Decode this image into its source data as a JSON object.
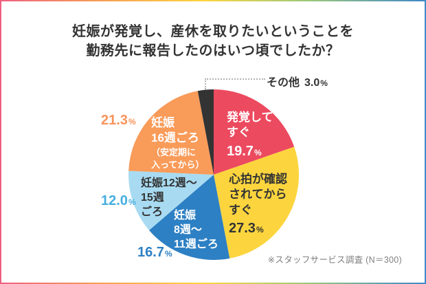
{
  "title": {
    "line1": "妊娠が発覚し、産休を取りたいということを",
    "line2": "勤務先に報告したのはいつ頃でしたか？"
  },
  "source_note": "※スタッフサービス調査 (N＝300)",
  "percent_sign": "%",
  "chart_data": {
    "type": "pie",
    "title": "妊娠が発覚し、産休を取りたいということを勤務先に報告したのはいつ頃でしたか？",
    "start_angle_deg": 0,
    "direction": "clockwise",
    "total": 100.0,
    "slices": [
      {
        "id": "hakkaku-sugu",
        "label": "発覚してすぐ",
        "label_lines": [
          "発覚して",
          "すぐ"
        ],
        "value": 19.7,
        "value_str": "19.7",
        "color": "#ec4a5f",
        "label_color": "#ffffff",
        "label_position": "inside"
      },
      {
        "id": "shinpaku-kakunin",
        "label": "心拍が確認されてからすぐ",
        "label_lines": [
          "心拍が確認",
          "されてから",
          "すぐ"
        ],
        "value": 27.3,
        "value_str": "27.3",
        "color": "#fcd53e",
        "label_color": "#333333",
        "label_position": "inside"
      },
      {
        "id": "ninshin-8-11shu",
        "label": "妊娠8週〜11週ごろ",
        "label_lines": [
          "妊娠",
          "8週〜",
          "11週ごろ"
        ],
        "value": 16.7,
        "value_str": "16.7",
        "color": "#2d80c4",
        "label_color": "#ffffff",
        "pct_color": "#2d80c4",
        "label_position": "inside-pct-outside"
      },
      {
        "id": "ninshin-12-15shu",
        "label": "妊娠12週〜15週ごろ",
        "label_lines": [
          "妊娠12週〜",
          "15週",
          "ごろ"
        ],
        "value": 12.0,
        "value_str": "12.0",
        "color": "#a8dbf2",
        "label_color": "#333333",
        "pct_color": "#45aedf",
        "label_position": "inside-pct-outside"
      },
      {
        "id": "ninshin-16shu",
        "label": "妊娠16週ごろ（安定期に入ってから）",
        "label_lines": [
          "妊娠",
          "16週ごろ"
        ],
        "label_sub_lines": [
          "（安定期に",
          "入ってから）"
        ],
        "value": 21.3,
        "value_str": "21.3",
        "color": "#f99b59",
        "label_color": "#ffffff",
        "pct_color": "#f8935a",
        "label_position": "inside-pct-outside"
      },
      {
        "id": "sonota",
        "label": "その他",
        "value": 3.0,
        "value_str": "3.0",
        "color": "#333333",
        "pct_color": "#333333",
        "label_position": "outside-callout"
      }
    ]
  }
}
